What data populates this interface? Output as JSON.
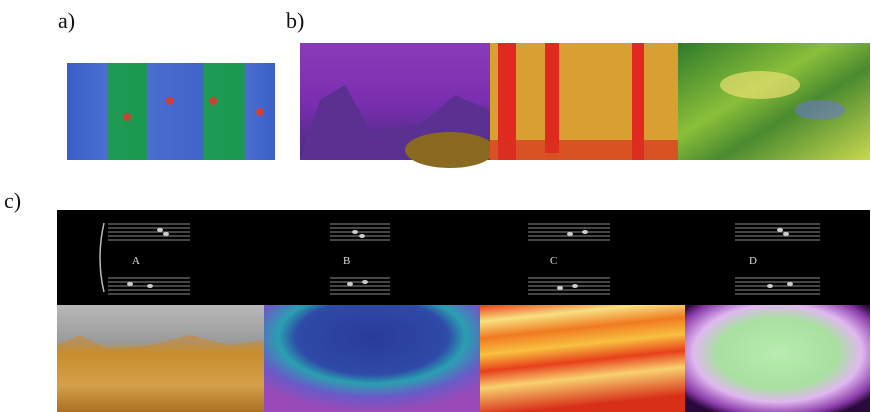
{
  "panel_labels": [
    "a)",
    "b)",
    "c)"
  ],
  "score_labels": [
    "A",
    "B",
    "C",
    "D"
  ]
}
